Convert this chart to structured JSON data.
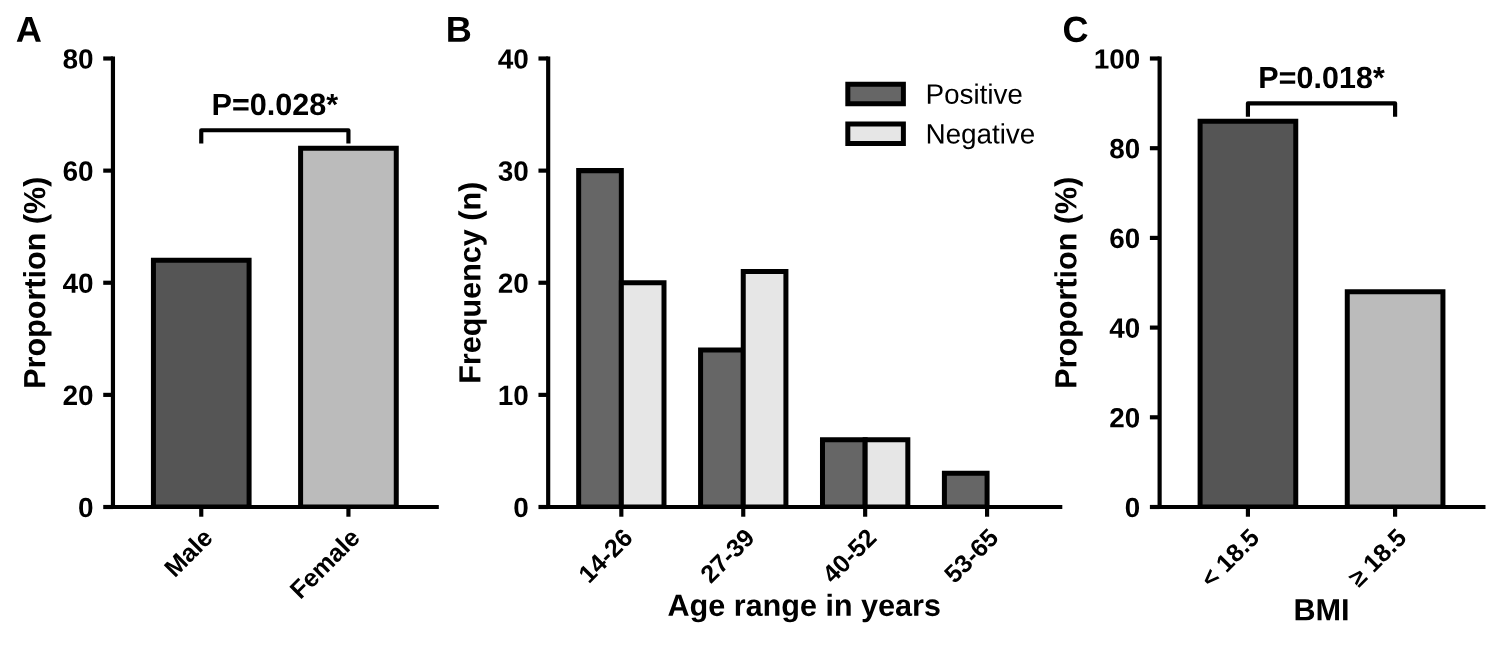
{
  "chart_data": [
    {
      "type": "bar",
      "title": "A",
      "ylabel": "Proportion (%)",
      "categories": [
        "Male",
        "Female"
      ],
      "values": [
        44,
        64
      ],
      "colors": [
        "#555555",
        "#bbbbbb"
      ],
      "ylim": [
        0,
        80
      ],
      "yticks": [
        0,
        20,
        40,
        60,
        80
      ],
      "annotations": [
        "P=0.028*"
      ],
      "grid": false,
      "legend": false
    },
    {
      "type": "bar",
      "title": "B",
      "ylabel": "Frequency (n)",
      "xlabel": "Age range in years",
      "categories": [
        "14-26",
        "27-39",
        "40-52",
        "53-65"
      ],
      "series": [
        {
          "name": "Positive",
          "color": "#666666",
          "values": [
            30,
            14,
            6,
            3
          ]
        },
        {
          "name": "Negative",
          "color": "#e6e6e6",
          "values": [
            20,
            21,
            6,
            null
          ]
        }
      ],
      "ylim": [
        0,
        40
      ],
      "yticks": [
        0,
        10,
        20,
        30,
        40
      ],
      "grid": false,
      "legend": "top right"
    },
    {
      "type": "bar",
      "title": "C",
      "ylabel": "Proportion (%)",
      "xlabel": "BMI",
      "categories": [
        "< 18.5",
        "≥ 18.5"
      ],
      "values": [
        86,
        48
      ],
      "colors": [
        "#555555",
        "#bbbbbb"
      ],
      "ylim": [
        0,
        100
      ],
      "yticks": [
        0,
        20,
        40,
        60,
        80,
        100
      ],
      "annotations": [
        "P=0.018*"
      ],
      "grid": false,
      "legend": false
    }
  ]
}
